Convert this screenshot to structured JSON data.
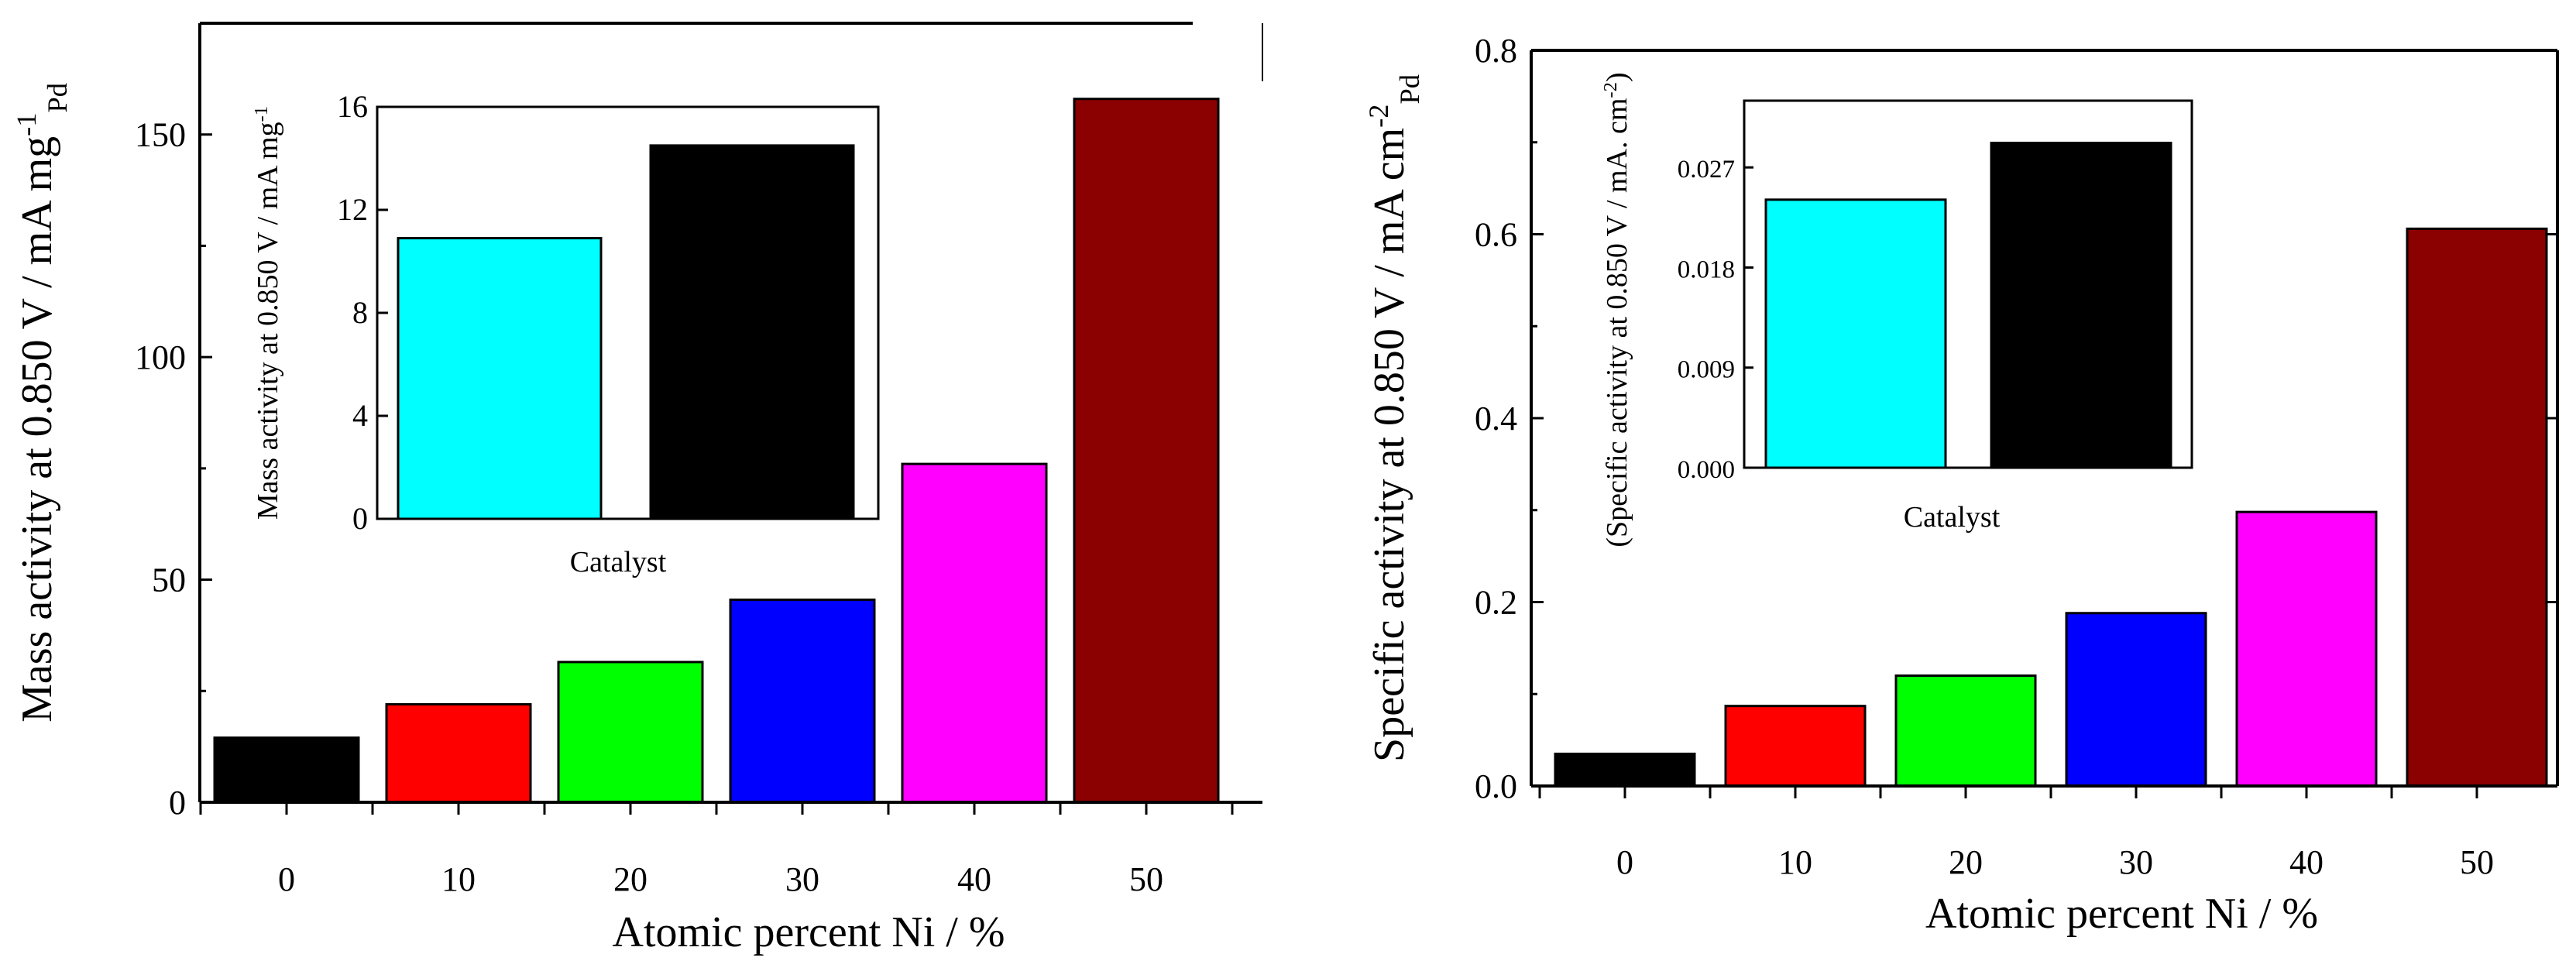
{
  "chart_data": [
    {
      "id": "left-main",
      "type": "bar",
      "categories": [
        "0",
        "10",
        "20",
        "30",
        "40",
        "50"
      ],
      "values": [
        14.5,
        22,
        31.5,
        45.5,
        76,
        158
      ],
      "colors": [
        "#000000",
        "#ff0000",
        "#00ff00",
        "#0000ff",
        "#ff00ff",
        "#8b0000"
      ],
      "xlabel": "Atomic percent Ni / %",
      "ylabel": "Mass activity at 0.850 V / mA mg",
      "ylabel_sup": "-1",
      "ylabel_sub": "Pd",
      "ylim": [
        0,
        175
      ],
      "yticks": [
        0,
        50,
        100,
        150
      ],
      "ytick_labels": [
        "0",
        "50",
        "100",
        "150"
      ]
    },
    {
      "id": "left-inset",
      "type": "bar",
      "categories": [
        "",
        ""
      ],
      "values": [
        10.9,
        14.5
      ],
      "colors": [
        "#00ffff",
        "#000000"
      ],
      "xlabel": "Catalyst",
      "ylabel": "Mass activity at 0.850 V / mA mg",
      "ylabel_sup": "-1",
      "ylim": [
        0,
        16
      ],
      "yticks": [
        0,
        4,
        8,
        12,
        16
      ],
      "ytick_labels": [
        "0",
        "4",
        "8",
        "12",
        "16"
      ]
    },
    {
      "id": "right-main",
      "type": "bar",
      "categories": [
        "0",
        "10",
        "20",
        "30",
        "40",
        "50"
      ],
      "values": [
        0.035,
        0.087,
        0.12,
        0.188,
        0.298,
        0.606
      ],
      "colors": [
        "#000000",
        "#ff0000",
        "#00ff00",
        "#0000ff",
        "#ff00ff",
        "#8b0000"
      ],
      "xlabel": "Atomic percent Ni / %",
      "ylabel": "Specific activity at 0.850 V / mA cm",
      "ylabel_sup": "-2",
      "ylabel_sub": "Pd",
      "ylim": [
        0,
        0.8
      ],
      "yticks": [
        0,
        0.2,
        0.4,
        0.6,
        0.8
      ],
      "ytick_labels": [
        "0.0",
        "0.2",
        "0.4",
        "0.6",
        "0.8"
      ]
    },
    {
      "id": "right-inset",
      "type": "bar",
      "categories": [
        "",
        ""
      ],
      "values": [
        0.0241,
        0.0292
      ],
      "colors": [
        "#00ffff",
        "#000000"
      ],
      "xlabel": "Catalyst",
      "ylabel": "Specific activity at 0.850 V / mA. cm",
      "ylabel_sup": "-2",
      "ylabel_close": ")",
      "ylabel_open": "(",
      "ylim": [
        0,
        0.033
      ],
      "yticks": [
        0,
        0.009,
        0.018,
        0.027
      ],
      "ytick_labels": [
        "0.000",
        "0.009",
        "0.018",
        "0.027"
      ]
    }
  ]
}
